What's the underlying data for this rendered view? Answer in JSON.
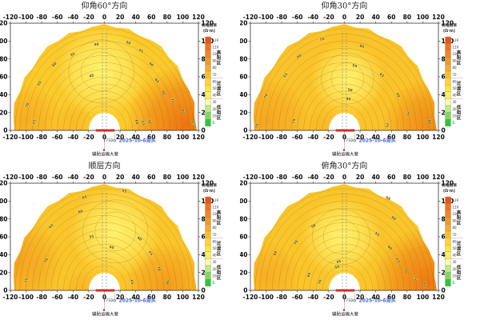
{
  "page": {
    "background": "#ffffff"
  },
  "axes": {
    "x_ticks": [
      -120,
      -100,
      -80,
      -60,
      -40,
      -20,
      0,
      20,
      40,
      60,
      80,
      100,
      120
    ],
    "y_ticks": [
      0,
      20,
      40,
      60,
      80,
      100,
      120
    ],
    "x_range": [
      -120,
      120
    ],
    "y_range": [
      0,
      120
    ]
  },
  "colorbar": {
    "title_line1": "视电阻率",
    "title_line2": "(Ω·m)",
    "ticks": [
      120,
      110,
      100,
      90,
      80,
      70,
      60,
      50,
      40,
      30,
      20,
      10,
      0
    ],
    "colors": [
      "#F1540F",
      "#F3701C",
      "#F58521",
      "#F79625",
      "#F9A928",
      "#FBBE2B",
      "#FFD42F",
      "#FFE338",
      "#FFEF60",
      "#FFF9A8",
      "#BCEA84",
      "#7EDB55",
      "#2DC937"
    ],
    "zones": [
      {
        "label": "高阻区"
      },
      {
        "label": "过渡区"
      },
      {
        "label": "低阻区"
      }
    ]
  },
  "annotations": {
    "distance": "1733m",
    "face_label": "2025-10-6迎头",
    "face_color": "#4466CC",
    "roadway": "辅助运输大巷",
    "marker_color": "#CC2211",
    "probe_bar_color": "#D03024"
  },
  "chart_data": [
    {
      "type": "contour",
      "key": "elevation-60",
      "title": "仰角60°方向",
      "x_range": [
        -120,
        120
      ],
      "y_range": [
        0,
        120
      ],
      "fan": {
        "inner": 20,
        "outer": 117
      },
      "base_color": "#FBC92C",
      "light_center": {
        "x": -4,
        "y": 66,
        "r": 52,
        "color": "#FFF475"
      },
      "hot_spots": [
        {
          "x": 105,
          "y": 6,
          "r": 72,
          "color": "#ED6F10",
          "opacity": 0.95
        },
        {
          "x": -102,
          "y": 10,
          "r": 46,
          "color": "#F5A021",
          "opacity": 0.7
        },
        {
          "x": -40,
          "y": 8,
          "r": 25,
          "color": "#F7AD24",
          "opacity": 0.5
        }
      ],
      "contour_radii": [
        28,
        36,
        44,
        52,
        60,
        68,
        76,
        84,
        92,
        100,
        108,
        114
      ],
      "labels": [
        [
          50,
          -10,
          95
        ],
        [
          55,
          -40,
          84
        ],
        [
          60,
          -63,
          73
        ],
        [
          65,
          -82,
          52
        ],
        [
          70,
          -97,
          28
        ],
        [
          75,
          -88,
          9
        ],
        [
          45,
          -16,
          60
        ],
        [
          50,
          30,
          97
        ],
        [
          55,
          46,
          88
        ],
        [
          60,
          59,
          73
        ],
        [
          65,
          66,
          55
        ],
        [
          70,
          74,
          42
        ],
        [
          75,
          86,
          33
        ],
        [
          80,
          99,
          21
        ],
        [
          85,
          112,
          8
        ],
        [
          60,
          40,
          9
        ],
        [
          65,
          48,
          8
        ],
        [
          70,
          56,
          10
        ]
      ]
    },
    {
      "type": "contour",
      "key": "elevation-30",
      "title": "仰角30°方向",
      "x_range": [
        -120,
        120
      ],
      "y_range": [
        0,
        120
      ],
      "fan": {
        "inner": 20,
        "outer": 117
      },
      "base_color": "#FAC32B",
      "light_center": {
        "x": 4,
        "y": 58,
        "r": 42,
        "color": "#FFF472"
      },
      "hot_spots": [
        {
          "x": 108,
          "y": 6,
          "r": 55,
          "color": "#F08014",
          "opacity": 0.85
        },
        {
          "x": -100,
          "y": 10,
          "r": 52,
          "color": "#F49C1F",
          "opacity": 0.75
        },
        {
          "x": -30,
          "y": 4,
          "r": 22,
          "color": "#F7B026",
          "opacity": 0.5
        }
      ],
      "contour_radii": [
        28,
        36,
        44,
        52,
        60,
        68,
        76,
        84,
        92,
        100,
        108,
        114
      ],
      "labels": [
        [
          55,
          -28,
          101
        ],
        [
          60,
          -57,
          82
        ],
        [
          65,
          -74,
          61
        ],
        [
          70,
          -99,
          38
        ],
        [
          75,
          -63,
          10
        ],
        [
          75,
          -110,
          5
        ],
        [
          60,
          22,
          93
        ],
        [
          55,
          13,
          71
        ],
        [
          50,
          7,
          44
        ],
        [
          45,
          5,
          34
        ],
        [
          65,
          47,
          61
        ],
        [
          70,
          67,
          39
        ],
        [
          75,
          80,
          19
        ],
        [
          80,
          107,
          9
        ],
        [
          75,
          53,
          6
        ]
      ]
    },
    {
      "type": "contour",
      "key": "bedding",
      "title": "顺层方向",
      "x_range": [
        -120,
        120
      ],
      "y_range": [
        0,
        120
      ],
      "fan": {
        "inner": 20,
        "outer": 117
      },
      "base_color": "#FAC52B",
      "light_center": {
        "x": 14,
        "y": 66,
        "r": 52,
        "color": "#FFF472"
      },
      "hot_spots": [
        {
          "x": -112,
          "y": 30,
          "r": 55,
          "color": "#F49A1E",
          "opacity": 0.8
        },
        {
          "x": 80,
          "y": 6,
          "r": 50,
          "color": "#F2921B",
          "opacity": 0.8
        },
        {
          "x": -30,
          "y": 4,
          "r": 20,
          "color": "#F6A822",
          "opacity": 0.5
        }
      ],
      "contour_radii": [
        28,
        36,
        44,
        52,
        60,
        68,
        76,
        84,
        92,
        100,
        108,
        114
      ],
      "labels": [
        [
          60,
          -30,
          87
        ],
        [
          65,
          -67,
          71
        ],
        [
          70,
          -73,
          33
        ],
        [
          75,
          -98,
          11
        ],
        [
          55,
          -16,
          59
        ],
        [
          50,
          9,
          47
        ],
        [
          60,
          44,
          57
        ],
        [
          65,
          58,
          41
        ],
        [
          70,
          68,
          24
        ],
        [
          65,
          34,
          9
        ],
        [
          70,
          79,
          9
        ],
        [
          55,
          25,
          110
        ],
        [
          65,
          -25,
          103
        ]
      ]
    },
    {
      "type": "contour",
      "key": "depression-30",
      "title": "俯角30°方向",
      "x_range": [
        -120,
        120
      ],
      "y_range": [
        0,
        120
      ],
      "fan": {
        "inner": 20,
        "outer": 117
      },
      "base_color": "#FAC52B",
      "light_center": {
        "x": -4,
        "y": 60,
        "r": 46,
        "color": "#FFF472"
      },
      "hot_spots": [
        {
          "x": 108,
          "y": 8,
          "r": 68,
          "color": "#EE7411",
          "opacity": 0.95
        },
        {
          "x": -100,
          "y": 16,
          "r": 42,
          "color": "#F5A021",
          "opacity": 0.6
        }
      ],
      "contour_radii": [
        28,
        36,
        44,
        52,
        60,
        68,
        76,
        84,
        92,
        100,
        108,
        114
      ],
      "labels": [
        [
          50,
          -39,
          71
        ],
        [
          55,
          -61,
          53
        ],
        [
          60,
          -87,
          41
        ],
        [
          65,
          -44,
          17
        ],
        [
          70,
          -30,
          9
        ],
        [
          55,
          41,
          62
        ],
        [
          60,
          57,
          47
        ],
        [
          65,
          67,
          33
        ],
        [
          70,
          77,
          22
        ],
        [
          75,
          89,
          14
        ],
        [
          80,
          101,
          7
        ],
        [
          45,
          -7,
          31
        ],
        [
          50,
          -9,
          25
        ],
        [
          55,
          55,
          102
        ],
        [
          60,
          62,
          80
        ]
      ]
    }
  ]
}
